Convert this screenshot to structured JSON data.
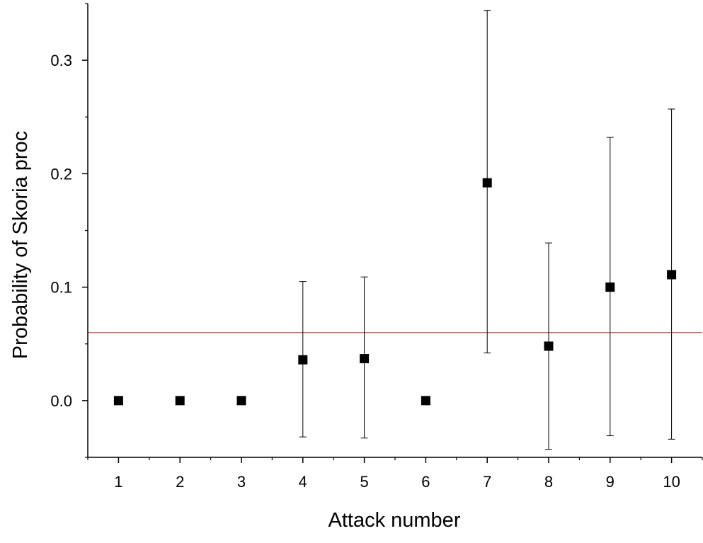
{
  "chart_data": {
    "type": "scatter",
    "title": "",
    "xlabel": "Attack number",
    "ylabel": "Probability of Skoria proc",
    "x": [
      1,
      2,
      3,
      4,
      5,
      6,
      7,
      8,
      9,
      10
    ],
    "y": [
      0.0,
      0.0,
      0.0,
      0.036,
      0.037,
      0.0,
      0.192,
      0.048,
      0.1,
      0.111
    ],
    "error_low": [
      null,
      null,
      null,
      -0.032,
      -0.033,
      null,
      0.042,
      -0.043,
      -0.031,
      -0.034
    ],
    "error_high": [
      null,
      null,
      null,
      0.105,
      0.109,
      null,
      0.344,
      0.139,
      0.232,
      0.257
    ],
    "xlim": [
      0.5,
      10.5
    ],
    "ylim": [
      -0.05,
      0.35
    ],
    "xticks": [
      "1",
      "2",
      "3",
      "4",
      "5",
      "6",
      "7",
      "8",
      "9",
      "10"
    ],
    "yticks": [
      "0.0",
      "0.1",
      "0.2",
      "0.3"
    ],
    "reference_line": {
      "y": 0.06,
      "color": "#c0504d"
    },
    "marker_color": "#000000",
    "grid": false,
    "legend": "none"
  }
}
